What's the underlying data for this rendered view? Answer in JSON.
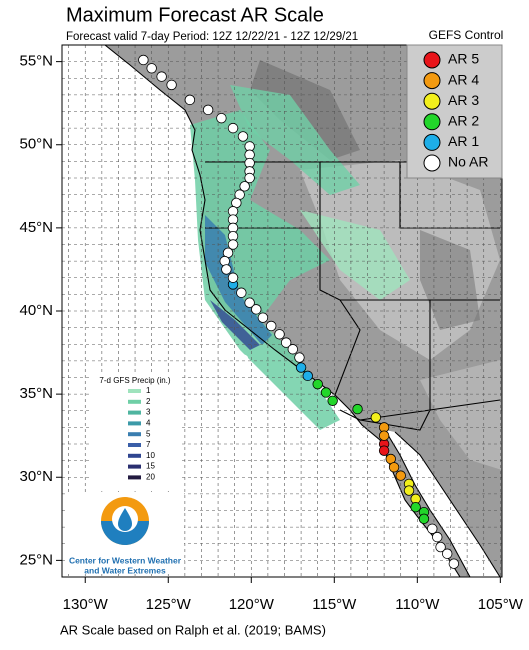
{
  "title": "Maximum Forecast AR Scale",
  "subtitle": "Forecast valid 7-day Period: 12Z 12/22/21 - 12Z 12/29/21",
  "footer": "AR Scale based on Ralph et al. (2019; BAMS)",
  "map": {
    "xlim": [
      -131.4,
      -104.9
    ],
    "ylim": [
      24.0,
      56.0
    ],
    "xticks": [
      {
        "value": -130,
        "label": "130°W"
      },
      {
        "value": -125,
        "label": "125°W"
      },
      {
        "value": -120,
        "label": "120°W"
      },
      {
        "value": -115,
        "label": "115°W"
      },
      {
        "value": -110,
        "label": "110°W"
      },
      {
        "value": -105,
        "label": "105°W"
      }
    ],
    "yticks": [
      {
        "value": 25,
        "label": "25°N"
      },
      {
        "value": 30,
        "label": "30°N"
      },
      {
        "value": 35,
        "label": "35°N"
      },
      {
        "value": 40,
        "label": "40°N"
      },
      {
        "value": 45,
        "label": "45°N"
      },
      {
        "value": 50,
        "label": "50°N"
      },
      {
        "value": 55,
        "label": "55°N"
      }
    ],
    "grid": true
  },
  "ar_legend": {
    "title": "GEFS Control",
    "items": [
      {
        "label": "AR 5",
        "color": "#e8141a",
        "lon": [
          -112.0,
          -112.0
        ],
        "lat": [
          32.0,
          31.6
        ]
      },
      {
        "label": "AR 4",
        "color": "#f39a10",
        "lon": [
          -112.0,
          -112.0,
          -111.6,
          -111.4,
          -111.0
        ],
        "lat": [
          33.0,
          32.5,
          31.1,
          30.6,
          30.1
        ]
      },
      {
        "label": "AR 3",
        "color": "#f2ef1c",
        "lon": [
          -112.5,
          -110.5,
          -110.5,
          -110.1
        ],
        "lat": [
          33.6,
          29.6,
          29.2,
          28.7
        ]
      },
      {
        "label": "AR 2",
        "color": "#22d62a",
        "lon": [
          -116.0,
          -115.5,
          -115.1,
          -113.6,
          -110.1,
          -109.6,
          -109.6
        ],
        "lat": [
          35.6,
          35.1,
          34.6,
          34.1,
          28.2,
          27.9,
          27.5
        ]
      },
      {
        "label": "AR 1",
        "color": "#1eaee8",
        "lon": [
          -121.1,
          -117.0,
          -116.6
        ],
        "lat": [
          41.6,
          36.6,
          36.1
        ]
      },
      {
        "label": "No AR",
        "color": "#ffffff",
        "lon": [
          -126.5,
          -126.0,
          -125.4,
          -124.8,
          -123.7,
          -122.6,
          -121.8,
          -121.1,
          -120.5,
          -120.1,
          -120.1,
          -120.1,
          -120.1,
          -120.1,
          -120.4,
          -120.7,
          -120.9,
          -121.1,
          -121.1,
          -121.1,
          -121.1,
          -121.1,
          -121.4,
          -121.6,
          -121.5,
          -121.1,
          -120.6,
          -120.1,
          -119.7,
          -119.3,
          -118.8,
          -118.3,
          -117.9,
          -117.5,
          -117.1,
          -109.1,
          -108.8,
          -108.6,
          -108.2,
          -107.8
        ],
        "lat": [
          55.1,
          54.6,
          54.1,
          53.6,
          52.7,
          52.1,
          51.6,
          51.0,
          50.5,
          49.9,
          49.4,
          48.9,
          48.4,
          48.0,
          47.5,
          47.0,
          46.5,
          46.0,
          45.5,
          45.0,
          44.5,
          44.0,
          43.5,
          43.0,
          42.5,
          42.0,
          41.1,
          40.5,
          40.1,
          39.6,
          39.1,
          38.6,
          38.1,
          37.7,
          37.2,
          26.9,
          26.4,
          25.8,
          25.4,
          24.8
        ]
      }
    ]
  },
  "precip_legend": {
    "title": "7-d GFS Precip (in.)",
    "items": [
      {
        "label": "1",
        "color": "#9fe3bd"
      },
      {
        "label": "2",
        "color": "#6fcfa6"
      },
      {
        "label": "3",
        "color": "#4fb5a0"
      },
      {
        "label": "4",
        "color": "#3c9aa8"
      },
      {
        "label": "5",
        "color": "#3a7eb0"
      },
      {
        "label": "7",
        "color": "#3a5fa8"
      },
      {
        "label": "10",
        "color": "#2f4590"
      },
      {
        "label": "15",
        "color": "#2a2f70"
      },
      {
        "label": "20",
        "color": "#221a40"
      }
    ]
  },
  "logo": {
    "lines": [
      "Center for Western Weather",
      "and Water Extremes"
    ]
  }
}
